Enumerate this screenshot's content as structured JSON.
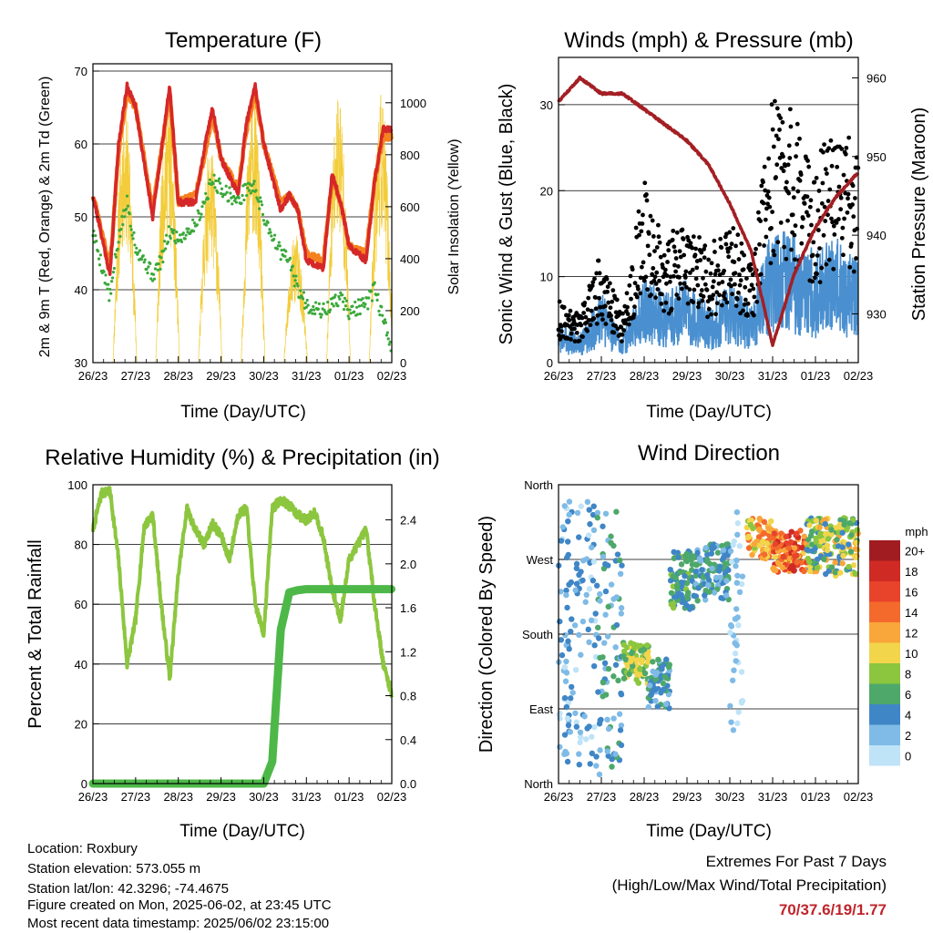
{
  "panels": {
    "temp": {
      "title": "Temperature (F)",
      "xlabel": "Time (Day/UTC)",
      "ylabel_left": "2m & 9m T (Red, Orange) & 2m Td (Green)",
      "ylabel_right": "Solar Insolation (Yellow)"
    },
    "wind": {
      "title": "Winds (mph) & Pressure (mb)",
      "xlabel": "Time (Day/UTC)",
      "ylabel_left": "Sonic Wind & Gust (Blue, Black)",
      "ylabel_right": "Station Pressure (Maroon)"
    },
    "rh": {
      "title": "Relative Humidity (%) & Precipitation (in)",
      "xlabel": "Time (Day/UTC)",
      "ylabel_left": "Percent & Total Rainfall"
    },
    "dir": {
      "title": "Wind Direction",
      "xlabel": "Time (Day/UTC)",
      "ylabel_left": "Direction (Colored By Speed)",
      "legend_title": "mph",
      "legend_labels": [
        "20+",
        "18",
        "16",
        "14",
        "12",
        "10",
        "8",
        "6",
        "4",
        "2",
        "0"
      ],
      "legend_colors": [
        "#a01c20",
        "#cf2a23",
        "#e8432b",
        "#f46a2c",
        "#f9a63a",
        "#f2d54b",
        "#8cc63f",
        "#4da86a",
        "#3f86c6",
        "#7fbbe6",
        "#bfe3f7"
      ]
    }
  },
  "info": {
    "location": "Location: Roxbury",
    "elevation": "Station elevation: 573.055 m",
    "latlon": "Station lat/lon: 42.3296; -74.4675",
    "created": "Figure created on Mon, 2025-06-02, at 23:45 UTC",
    "recent": "Most recent data timestamp: 2025/06/02 23:15:00"
  },
  "extremes": {
    "line1": "Extremes For Past 7 Days",
    "line2": "(High/Low/Max Wind/Total Precipitation)",
    "values": "70/37.6/19/1.77"
  },
  "chart_data": [
    {
      "type": "line",
      "title": "Temperature (F)",
      "xlabel": "Time (Day/UTC)",
      "ylabel": "2m & 9m T (Red, Orange) & 2m Td (Green)",
      "y2label": "Solar Insolation (Yellow)",
      "x": [
        26.0,
        26.4,
        26.6,
        26.8,
        27.0,
        27.4,
        27.6,
        27.8,
        28.0,
        28.4,
        28.6,
        28.8,
        29.0,
        29.4,
        29.6,
        29.8,
        30.0,
        30.4,
        30.6,
        30.8,
        31.0,
        31.4,
        31.6,
        31.8,
        32.0,
        32.4,
        32.6,
        32.8,
        33.0
      ],
      "x_tick_labels": [
        "26/23",
        "27/23",
        "28/23",
        "29/23",
        "30/23",
        "31/23",
        "01/23",
        "02/23"
      ],
      "x_ticks": [
        26,
        27,
        28,
        29,
        30,
        31,
        32,
        33
      ],
      "ylim": [
        30,
        71
      ],
      "y2lim": [
        0,
        1150
      ],
      "yticks": [
        30,
        40,
        50,
        60,
        70
      ],
      "y2ticks": [
        0,
        200,
        400,
        600,
        800,
        1000
      ],
      "series": [
        {
          "name": "2m T",
          "color": "#d62728",
          "values": [
            53,
            42,
            60,
            68,
            65,
            50,
            59,
            68,
            52,
            52,
            59,
            65,
            58,
            53,
            63,
            68,
            60,
            51,
            53,
            51,
            44,
            43,
            56,
            52,
            46,
            44,
            55,
            62,
            62
          ]
        },
        {
          "name": "9m T",
          "color": "#f5821f",
          "values": [
            53,
            43,
            59,
            67,
            65,
            51,
            59,
            67,
            52,
            53,
            58,
            64,
            58,
            54,
            62,
            67,
            60,
            52,
            53,
            51,
            45,
            44,
            55,
            52,
            46,
            45,
            55,
            61,
            61
          ]
        },
        {
          "name": "2m Td",
          "color": "#3aa83a",
          "values": [
            48,
            39,
            47,
            52,
            46,
            42,
            44,
            48,
            47,
            49,
            52,
            55,
            54,
            52,
            54,
            54,
            50,
            45,
            44,
            40,
            38,
            37,
            38,
            39,
            37,
            38,
            40,
            36,
            31
          ]
        }
      ],
      "insolation": [
        {
          "day": 26.75,
          "peak": 1000
        },
        {
          "day": 27.75,
          "peak": 1050
        },
        {
          "day": 28.75,
          "peak": 850
        },
        {
          "day": 29.75,
          "peak": 1070
        },
        {
          "day": 30.75,
          "peak": 500
        },
        {
          "day": 31.75,
          "peak": 1080
        },
        {
          "day": 32.75,
          "peak": 1050
        }
      ]
    },
    {
      "type": "line",
      "title": "Winds (mph) & Pressure (mb)",
      "xlabel": "Time (Day/UTC)",
      "ylabel": "Sonic Wind & Gust (Blue, Black)",
      "y2label": "Station Pressure (Maroon)",
      "x_tick_labels": [
        "26/23",
        "27/23",
        "28/23",
        "29/23",
        "30/23",
        "31/23",
        "01/23",
        "02/23"
      ],
      "x_ticks": [
        26,
        27,
        28,
        29,
        30,
        31,
        32,
        33
      ],
      "ylim": [
        0,
        35.5
      ],
      "yticks": [
        0,
        10,
        20,
        30
      ],
      "y2lim": [
        923.8,
        962.6
      ],
      "y2ticks": [
        930,
        940,
        950,
        960
      ],
      "x": [
        26.0,
        26.5,
        27.0,
        27.5,
        28.0,
        28.5,
        29.0,
        29.5,
        30.0,
        30.5,
        31.0,
        31.5,
        32.0,
        32.5,
        33.0
      ],
      "series": [
        {
          "name": "Sonic Wind",
          "color": "#4a90d0",
          "values": [
            3,
            2,
            5,
            2,
            6,
            5,
            6,
            4,
            6,
            4,
            10,
            9,
            8,
            9,
            7
          ]
        },
        {
          "name": "Gust",
          "color": "#000000",
          "values": [
            5,
            4,
            9,
            4,
            15,
            10,
            12,
            9,
            12,
            8,
            22,
            20,
            16,
            20,
            17
          ]
        },
        {
          "name": "Station Pressure",
          "color": "#a31f24",
          "values": [
            957,
            960,
            958,
            958,
            956,
            954,
            952,
            949,
            944,
            938,
            926,
            935,
            941,
            945,
            948
          ]
        }
      ]
    },
    {
      "type": "line",
      "title": "Relative Humidity (%) & Precipitation (in)",
      "xlabel": "Time (Day/UTC)",
      "ylabel": "Percent & Total Rainfall",
      "x_tick_labels": [
        "26/23",
        "27/23",
        "28/23",
        "29/23",
        "30/23",
        "31/23",
        "01/23",
        "02/23"
      ],
      "x_ticks": [
        26,
        27,
        28,
        29,
        30,
        31,
        32,
        33
      ],
      "ylim": [
        0,
        100
      ],
      "yticks": [
        0,
        20,
        40,
        60,
        80,
        100
      ],
      "y2lim": [
        0,
        2.72
      ],
      "y2ticks": [
        0.0,
        0.4,
        0.8,
        1.2,
        1.6,
        2.0,
        2.4
      ],
      "x": [
        26.0,
        26.2,
        26.4,
        26.6,
        26.8,
        27.0,
        27.2,
        27.4,
        27.6,
        27.8,
        28.0,
        28.2,
        28.4,
        28.6,
        28.8,
        29.0,
        29.2,
        29.4,
        29.6,
        29.8,
        30.0,
        30.2,
        30.4,
        30.6,
        30.8,
        31.0,
        31.2,
        31.4,
        31.6,
        31.8,
        32.0,
        32.2,
        32.4,
        32.6,
        32.8,
        33.0
      ],
      "series": [
        {
          "name": "Relative Humidity",
          "color": "#8cc63f",
          "values": [
            85,
            97,
            98,
            75,
            40,
            55,
            86,
            90,
            60,
            35,
            70,
            92,
            85,
            80,
            87,
            83,
            75,
            90,
            92,
            60,
            50,
            92,
            95,
            93,
            90,
            88,
            91,
            82,
            65,
            55,
            75,
            80,
            85,
            60,
            40,
            30
          ]
        },
        {
          "name": "Total Precipitation",
          "color": "#4db848",
          "values": [
            0,
            0,
            0,
            0,
            0,
            0,
            0,
            0,
            0,
            0,
            0,
            0,
            0,
            0,
            0,
            0,
            0,
            0,
            0,
            0,
            0,
            0.2,
            1.4,
            1.74,
            1.76,
            1.77,
            1.77,
            1.77,
            1.77,
            1.77,
            1.77,
            1.77,
            1.77,
            1.77,
            1.77,
            1.77
          ]
        }
      ]
    },
    {
      "type": "scatter",
      "title": "Wind Direction",
      "xlabel": "Time (Day/UTC)",
      "ylabel": "Direction (Colored By Speed)",
      "x_tick_labels": [
        "26/23",
        "27/23",
        "28/23",
        "29/23",
        "30/23",
        "31/23",
        "01/23",
        "02/23"
      ],
      "x_ticks": [
        26,
        27,
        28,
        29,
        30,
        31,
        32,
        33
      ],
      "ylim": [
        0,
        360
      ],
      "yticks": [
        0,
        90,
        180,
        270,
        360
      ],
      "ytick_labels": [
        "North",
        "East",
        "South",
        "West",
        "North"
      ],
      "color_scale_mph": [
        0,
        2,
        4,
        6,
        8,
        10,
        12,
        14,
        16,
        18,
        20
      ],
      "clusters": [
        {
          "x_range": [
            26.0,
            26.9
          ],
          "dir_range": [
            20,
            340
          ],
          "speed_range": [
            0,
            5
          ]
        },
        {
          "x_range": [
            26.9,
            27.5
          ],
          "dir_range": [
            10,
            340
          ],
          "speed_range": [
            1,
            7
          ]
        },
        {
          "x_range": [
            27.5,
            28.1
          ],
          "dir_range": [
            120,
            170
          ],
          "speed_range": [
            5,
            11
          ]
        },
        {
          "x_range": [
            28.1,
            28.6
          ],
          "dir_range": [
            90,
            150
          ],
          "speed_range": [
            2,
            7
          ]
        },
        {
          "x_range": [
            28.6,
            29.2
          ],
          "dir_range": [
            210,
            280
          ],
          "speed_range": [
            3,
            8
          ]
        },
        {
          "x_range": [
            29.2,
            30.0
          ],
          "dir_range": [
            220,
            290
          ],
          "speed_range": [
            2,
            7
          ]
        },
        {
          "x_range": [
            30.0,
            30.3
          ],
          "dir_range": [
            60,
            330
          ],
          "speed_range": [
            0,
            3
          ]
        },
        {
          "x_range": [
            30.4,
            31.0
          ],
          "dir_range": [
            270,
            320
          ],
          "speed_range": [
            8,
            15
          ]
        },
        {
          "x_range": [
            31.0,
            31.8
          ],
          "dir_range": [
            255,
            305
          ],
          "speed_range": [
            10,
            19
          ]
        },
        {
          "x_range": [
            31.8,
            33.0
          ],
          "dir_range": [
            250,
            320
          ],
          "speed_range": [
            4,
            12
          ]
        }
      ]
    }
  ]
}
